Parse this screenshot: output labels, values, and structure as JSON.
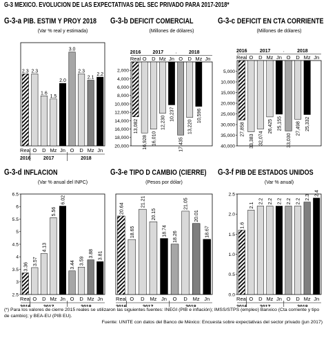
{
  "figure": {
    "code": "G-3",
    "title": "MEXICO. EVOLUCION DE LAS EXPECTATIVAS DEL SEC PRIVADO PARA 2017-2018*"
  },
  "notes": {
    "footnote": "(*) Para los valores de cierre 2015 reales se utilizaron las siguientes fuentes: INEGI (PIB e inflación); IMSS/STPS (empleo) Banxico (Cta corriente y tipo de cambio); y BEA-EU (PIB EU).",
    "source": "Fuente: UNITE con datos del Banco de México: Encuesta sobre expectativas del sector privado (jun 2017)"
  },
  "colors": {
    "light_gray": "#d9d9d9",
    "mid_gray": "#a6a6a6",
    "dark_gray": "#7f7f7f",
    "black": "#000000"
  },
  "chart_data": [
    {
      "code": "G-3-a",
      "title": "PIB. ESTIM Y PROY 2018",
      "unit": "(Var % real y estimada)",
      "type": "bar",
      "axis": "none",
      "ylim": [
        0,
        3.3
      ],
      "categories": [
        "Real",
        "O",
        "D",
        "Mz",
        "Jn",
        "O",
        "D",
        "Mz",
        "Jn"
      ],
      "values": [
        2.3,
        2.3,
        1.6,
        1.5,
        2.0,
        3.0,
        2.3,
        2.1,
        2.2
      ],
      "labels": [
        "2.3",
        "2.3",
        "1.6",
        "1.5",
        "2.0",
        "3.0",
        "2.3",
        "2.1",
        "2.2"
      ],
      "styles": [
        "hatch",
        "light",
        "light",
        "light",
        "black",
        "mid",
        "light",
        "dark",
        "black"
      ],
      "years": [
        "2016",
        "2017",
        "2018"
      ],
      "year_labels_top": false
    },
    {
      "code": "G-3-b",
      "title": "DEFICIT COMERCIAL",
      "unit": "(Millones de dólares)",
      "type": "bar",
      "axis": "left",
      "inverted": true,
      "ylim": [
        0,
        20000
      ],
      "yticks": [
        2000,
        4000,
        6000,
        8000,
        10000,
        12000,
        14000,
        16000,
        18000,
        20000
      ],
      "ytick_labels": [
        "2,000",
        "4,000",
        "6,000",
        "8,000",
        "10,000",
        "12,000",
        "14,000",
        "16,000",
        "18,000",
        "20,000"
      ],
      "categories": [
        "Real",
        "O",
        "D",
        "Mz",
        "Jn",
        "O",
        "D",
        "Mz",
        "Jn"
      ],
      "values": [
        13082,
        16928,
        16010,
        12230,
        10237,
        17435,
        13220,
        10596,
        null
      ],
      "labels": [
        "13,082",
        "16,928",
        "16,010",
        "12,230",
        "10,237",
        "17,435",
        "13,220",
        "10,596",
        ""
      ],
      "styles": [
        "hatch",
        "light",
        "light",
        "light",
        "black",
        "mid",
        "light",
        "black",
        "none"
      ],
      "years": [
        "2016",
        "2017",
        "2018"
      ],
      "year_labels_top": true
    },
    {
      "code": "G-3-c",
      "title": "DEFICIT EN CTA CORRIENTE",
      "unit": "(Millones de dólares)",
      "type": "bar",
      "axis": "left",
      "inverted": true,
      "ylim": [
        0,
        40000
      ],
      "yticks": [
        5000,
        10000,
        15000,
        20000,
        25000,
        30000,
        35000,
        40000
      ],
      "ytick_labels": [
        "5,000",
        "10,000",
        "15,000",
        "20,000",
        "25,000",
        "30,000",
        "35,000",
        "40,000"
      ],
      "categories": [
        "Real",
        "O",
        "D",
        "Mz",
        "Jn",
        "O",
        "D",
        "Mz",
        "Jn"
      ],
      "values": [
        27858,
        33383,
        32074,
        26425,
        25155,
        33030,
        27498,
        25332,
        null
      ],
      "labels": [
        "27,858",
        "33,383",
        "32,074",
        "26,425",
        "25,155",
        "33,030",
        "27,498",
        "25,332",
        ""
      ],
      "styles": [
        "hatch",
        "light",
        "light",
        "light",
        "black",
        "mid",
        "light",
        "black",
        "none"
      ],
      "years": [
        "2016",
        "2017",
        "2018"
      ],
      "year_labels_top": true
    },
    {
      "code": "G-3-d",
      "title": "INFLACION",
      "unit": "(Var % anual del INPC)",
      "type": "bar",
      "axis": "left",
      "ylim": [
        2.5,
        6.5
      ],
      "yticks": [
        2.5,
        3,
        3.5,
        4,
        4.5,
        5,
        5.5,
        6,
        6.5
      ],
      "ytick_labels": [
        "2.5",
        "3",
        "3.5",
        "4",
        "4.5",
        "5",
        "5.5",
        "6",
        "6.5"
      ],
      "categories": [
        "Real",
        "O",
        "D",
        "Mz",
        "Jn",
        "O",
        "D",
        "Mz",
        "Jn"
      ],
      "values": [
        3.36,
        3.57,
        4.13,
        5.56,
        6.02,
        3.44,
        3.59,
        3.88,
        3.81
      ],
      "labels": [
        "3.36",
        "3.57",
        "4.13",
        "5.56",
        "6.02",
        "3.44",
        "3.59",
        "3.88",
        "3.81"
      ],
      "styles": [
        "hatch",
        "light",
        "light",
        "light",
        "black",
        "mid",
        "light",
        "dark",
        "black"
      ],
      "years": [
        "2016",
        "2017",
        "2018"
      ],
      "year_labels_top": false
    },
    {
      "code": "G-3-e",
      "title": "TIPO D CAMBIO (CIERRE)",
      "unit": "(Pesos por dólar)",
      "type": "bar",
      "axis": "none",
      "ylim": [
        14,
        22.5
      ],
      "categories": [
        "Real",
        "O",
        "D",
        "Mz",
        "Jn",
        "O",
        "D",
        "Mz",
        "Jn"
      ],
      "values": [
        20.64,
        18.65,
        21.21,
        20.15,
        18.74,
        18.26,
        21.05,
        20.01,
        18.67
      ],
      "labels": [
        "20.64",
        "18.65",
        "21.21",
        "20.15",
        "18.74",
        "18.26",
        "21.05",
        "20.01",
        "18.67"
      ],
      "styles": [
        "hatch",
        "light",
        "light",
        "light",
        "black",
        "mid",
        "light",
        "dark",
        "black"
      ],
      "years": [
        "2016",
        "2017",
        "2018"
      ],
      "year_labels_top": false
    },
    {
      "code": "G-3-f",
      "title": "PIB DE ESTADOS UNIDOS",
      "unit": "(Var % anual)",
      "type": "bar",
      "axis": "left",
      "ylim": [
        0,
        2.5
      ],
      "yticks": [
        0,
        0.5,
        1,
        1.5,
        2,
        2.5
      ],
      "ytick_labels": [
        "0.0",
        "0.5",
        "1.0",
        "1.5",
        "2.0",
        "2.5"
      ],
      "categories": [
        "Real",
        "O",
        "D",
        "Mz",
        "Jn",
        "O",
        "D",
        "Mz",
        "Jn"
      ],
      "values": [
        1.6,
        2.1,
        2.2,
        2.2,
        2.2,
        2.2,
        2.2,
        2.3,
        2.4
      ],
      "labels": [
        "1.6",
        "2.1",
        "2.2",
        "2.2",
        "2.2",
        "2.2",
        "2.2",
        "2.3",
        "2.4"
      ],
      "styles": [
        "hatch",
        "light",
        "light",
        "light",
        "black",
        "mid",
        "light",
        "dark",
        "black"
      ],
      "years": [
        "2016",
        "2017",
        "2018"
      ],
      "year_labels_top": false
    }
  ]
}
